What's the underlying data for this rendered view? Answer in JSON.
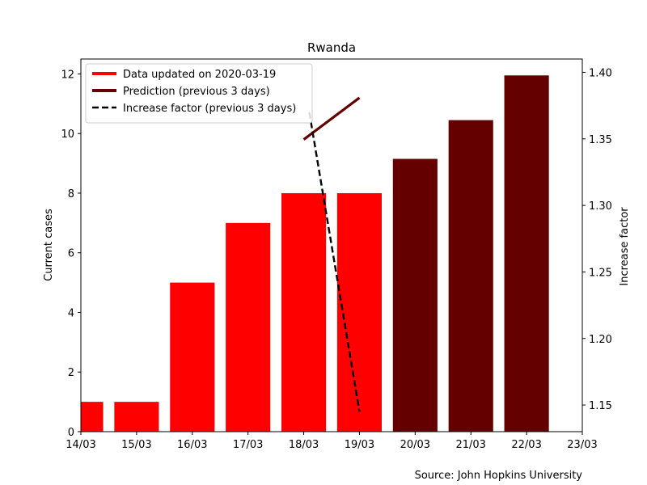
{
  "chart_data": {
    "type": "bar",
    "title": "Rwanda",
    "ylabel": "Current cases",
    "y2label": "Increase factor",
    "source": "Source: John Hopkins University",
    "x_ticks": [
      "14/03",
      "15/03",
      "16/03",
      "17/03",
      "18/03",
      "19/03",
      "20/03",
      "21/03",
      "22/03",
      "23/03"
    ],
    "x_range": [
      0,
      9
    ],
    "ylim": [
      0,
      12.5
    ],
    "y_ticks": [
      0,
      2,
      4,
      6,
      8,
      10,
      12
    ],
    "y2lim": [
      1.13,
      1.41
    ],
    "y2_ticks": [
      "1.15",
      "1.20",
      "1.25",
      "1.30",
      "1.35",
      "1.40"
    ],
    "legend_position": "upper-left",
    "colors": {
      "data": "#ff0000",
      "prediction": "#640000",
      "factor": "#000000"
    },
    "series": [
      {
        "name": "Data updated on 2020-03-19",
        "kind": "bar",
        "color": "#ff0000",
        "points": [
          {
            "x": 0.0,
            "y": 1,
            "label": "14/03"
          },
          {
            "x": 1.0,
            "y": 1,
            "label": "15/03"
          },
          {
            "x": 2.0,
            "y": 5,
            "label": "16/03"
          },
          {
            "x": 3.0,
            "y": 7,
            "label": "17/03"
          },
          {
            "x": 4.0,
            "y": 8,
            "label": "18/03"
          },
          {
            "x": 5.0,
            "y": 8,
            "label": "19/03"
          }
        ]
      },
      {
        "name": "Prediction (previous 3 days)",
        "kind": "bar",
        "color": "#640000",
        "points": [
          {
            "x": 6.0,
            "y": 9.15,
            "label": "20/03"
          },
          {
            "x": 7.0,
            "y": 10.45,
            "label": "21/03"
          },
          {
            "x": 8.0,
            "y": 11.95,
            "label": "22/03"
          }
        ]
      },
      {
        "name": "Prediction (previous 3 days)",
        "kind": "line",
        "axis": "left",
        "color": "#640000",
        "legend": false,
        "points": [
          {
            "x": 4.0,
            "y": 9.8
          },
          {
            "x": 5.0,
            "y": 11.2
          }
        ]
      },
      {
        "name": "Increase factor (previous 3 days)",
        "kind": "line",
        "axis": "right",
        "color": "#000000",
        "dashed": true,
        "points": [
          {
            "x": 4.1,
            "y": 1.37
          },
          {
            "x": 5.0,
            "y": 1.145
          }
        ]
      }
    ]
  }
}
